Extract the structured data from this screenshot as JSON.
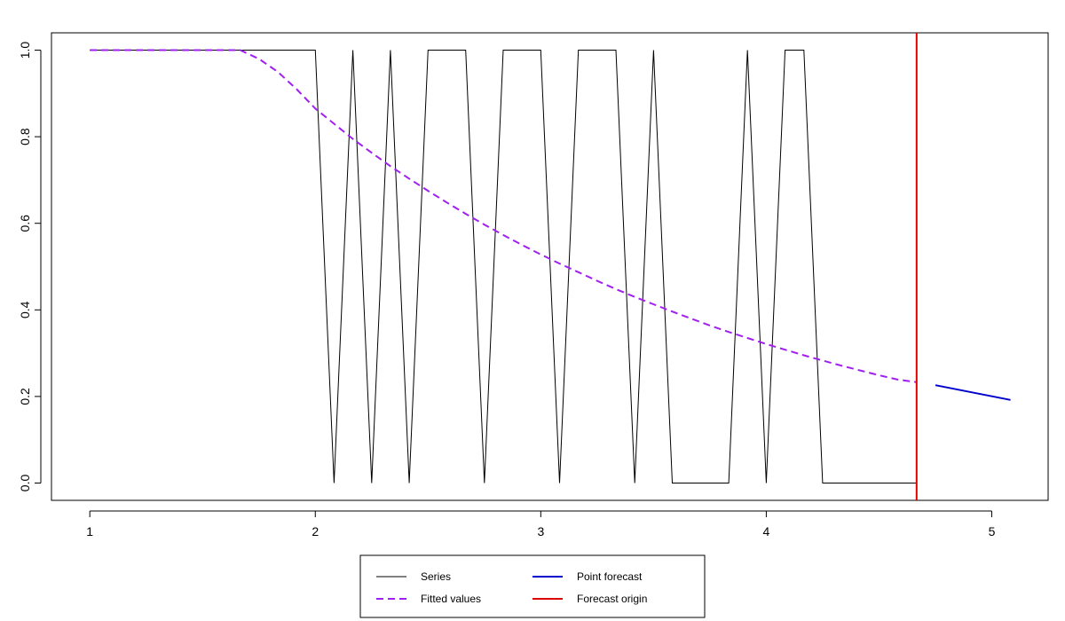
{
  "chart_data": {
    "type": "line",
    "title": "",
    "xlabel": "",
    "ylabel": "",
    "xlim": [
      0.83,
      5.25
    ],
    "ylim": [
      -0.04,
      1.04
    ],
    "xticks": [
      1,
      2,
      3,
      4,
      5
    ],
    "xtick_labels": [
      "1",
      "2",
      "3",
      "4",
      "5"
    ],
    "yticks": [
      0.0,
      0.2,
      0.4,
      0.6,
      0.8,
      1.0
    ],
    "ytick_labels": [
      "0.0",
      "0.2",
      "0.4",
      "0.6",
      "0.8",
      "1.0"
    ],
    "grid": false,
    "legend_position": "bottom",
    "series": [
      {
        "name": "Series",
        "color": "#000000",
        "dash": "solid",
        "x": [
          1.0,
          1.0833,
          1.1667,
          1.25,
          1.3333,
          1.4167,
          1.5,
          1.5833,
          1.6667,
          1.75,
          1.8333,
          1.9167,
          2.0,
          2.0833,
          2.1667,
          2.25,
          2.3333,
          2.4167,
          2.5,
          2.5833,
          2.6667,
          2.75,
          2.8333,
          2.9167,
          3.0,
          3.0833,
          3.1667,
          3.25,
          3.3333,
          3.4167,
          3.5,
          3.5833,
          3.6667,
          3.75,
          3.8333,
          3.9167,
          4.0,
          4.0833,
          4.1667,
          4.25,
          4.3333,
          4.4167,
          4.5,
          4.5833,
          4.6667
        ],
        "y": [
          1,
          1,
          1,
          1,
          1,
          1,
          1,
          1,
          1,
          1,
          1,
          1,
          1,
          0,
          1,
          0,
          1,
          0,
          1,
          1,
          1,
          0,
          1,
          1,
          1,
          0,
          1,
          1,
          1,
          0,
          1,
          0,
          0,
          0,
          0,
          1,
          0,
          1,
          1,
          0,
          0,
          0,
          0,
          0,
          0
        ]
      },
      {
        "name": "Fitted values",
        "color": "#a020f0",
        "dash": "dashed",
        "x": [
          1.0,
          1.0833,
          1.1667,
          1.25,
          1.3333,
          1.4167,
          1.5,
          1.5833,
          1.6667,
          1.75,
          1.8333,
          1.9167,
          2.0,
          2.0833,
          2.1667,
          2.25,
          2.3333,
          2.4167,
          2.5,
          2.5833,
          2.6667,
          2.75,
          2.8333,
          2.9167,
          3.0,
          3.0833,
          3.1667,
          3.25,
          3.3333,
          3.4167,
          3.5,
          3.5833,
          3.6667,
          3.75,
          3.8333,
          3.9167,
          4.0,
          4.0833,
          4.1667,
          4.25,
          4.3333,
          4.4167,
          4.5,
          4.5833,
          4.6667
        ],
        "y": [
          1.0,
          1.0,
          1.0,
          1.0,
          1.0,
          1.0,
          1.0,
          1.0,
          1.0,
          0.98,
          0.95,
          0.91,
          0.865,
          0.83,
          0.795,
          0.763,
          0.732,
          0.703,
          0.675,
          0.648,
          0.622,
          0.597,
          0.573,
          0.55,
          0.528,
          0.507,
          0.487,
          0.467,
          0.448,
          0.43,
          0.413,
          0.396,
          0.38,
          0.364,
          0.349,
          0.335,
          0.321,
          0.308,
          0.295,
          0.283,
          0.271,
          0.26,
          0.249,
          0.239,
          0.233
        ]
      },
      {
        "name": "Point forecast",
        "color": "#0000cd",
        "dash": "solid",
        "x": [
          4.75,
          5.0833
        ],
        "y": [
          0.226,
          0.192
        ]
      }
    ],
    "vlines": [
      {
        "name": "Forecast origin",
        "color": "#dd0000",
        "x": 4.6667
      }
    ],
    "legend": [
      {
        "label": "Series",
        "color": "#000000",
        "dash": "solid"
      },
      {
        "label": "Point forecast",
        "color": "#0000cd",
        "dash": "solid"
      },
      {
        "label": "Fitted values",
        "color": "#a020f0",
        "dash": "dashed"
      },
      {
        "label": "Forecast origin",
        "color": "#dd0000",
        "dash": "solid"
      }
    ]
  }
}
